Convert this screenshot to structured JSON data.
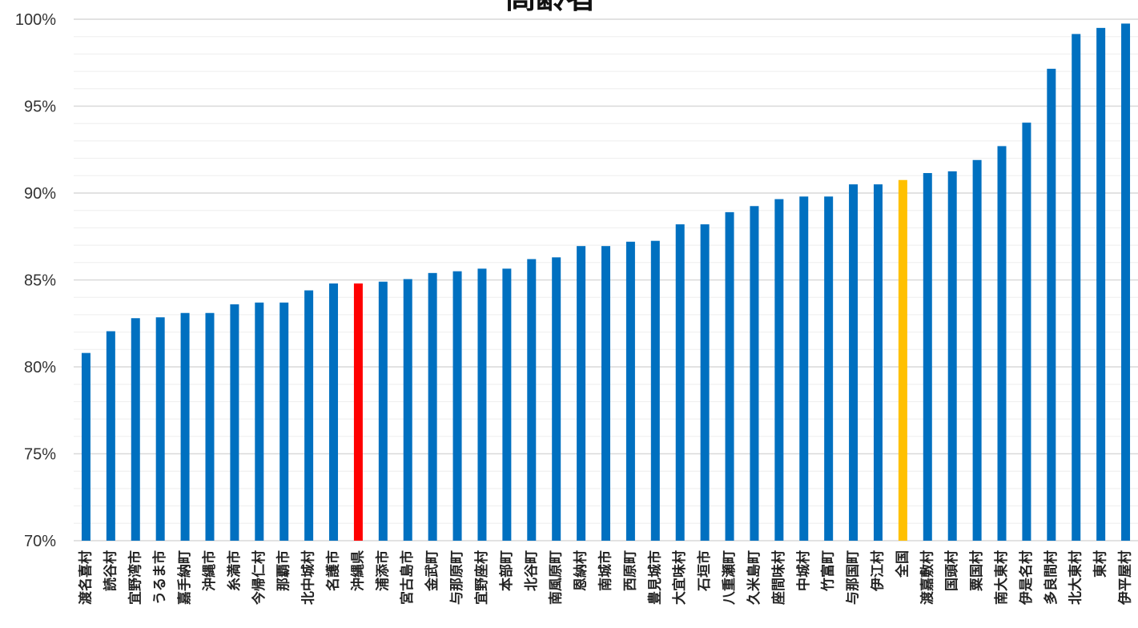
{
  "chart_data": {
    "type": "bar",
    "title": "高齢者",
    "xlabel": "",
    "ylabel": "",
    "ylim": [
      70,
      100
    ],
    "yticks": [
      "70%",
      "75%",
      "80%",
      "85%",
      "90%",
      "95%",
      "100%"
    ],
    "grid": true,
    "legend": "none",
    "categories": [
      "渡名喜村",
      "読谷村",
      "宜野湾市",
      "うるま市",
      "嘉手納町",
      "沖縄市",
      "糸満市",
      "今帰仁村",
      "那覇市",
      "北中城村",
      "名護市",
      "沖縄県",
      "浦添市",
      "宮古島市",
      "金武町",
      "与那原町",
      "宜野座村",
      "本部町",
      "北谷町",
      "南風原町",
      "恩納村",
      "南城市",
      "西原町",
      "豊見城市",
      "大宜味村",
      "石垣市",
      "八重瀬町",
      "久米島町",
      "座間味村",
      "中城村",
      "竹富町",
      "与那国町",
      "伊江村",
      "全国",
      "渡嘉敷村",
      "国頭村",
      "粟国村",
      "南大東村",
      "伊是名村",
      "多良間村",
      "北大東村",
      "東村",
      "伊平屋村"
    ],
    "values": [
      80.8,
      82.05,
      82.8,
      82.85,
      83.1,
      83.1,
      83.6,
      83.7,
      83.7,
      84.4,
      84.8,
      84.8,
      84.9,
      85.05,
      85.4,
      85.5,
      85.65,
      85.65,
      86.2,
      86.3,
      86.95,
      86.95,
      87.2,
      87.25,
      88.2,
      88.2,
      88.9,
      89.25,
      89.65,
      89.8,
      89.8,
      90.5,
      90.5,
      90.75,
      91.15,
      91.25,
      91.9,
      92.7,
      94.05,
      97.15,
      99.15,
      99.5,
      99.75
    ],
    "highlight": {
      "沖縄県": "#ff0000",
      "全国": "#ffc000"
    },
    "colors": {
      "bar": "#0070c0",
      "grid_major": "#d9d9d9",
      "grid_minor": "#eeeeee"
    }
  }
}
